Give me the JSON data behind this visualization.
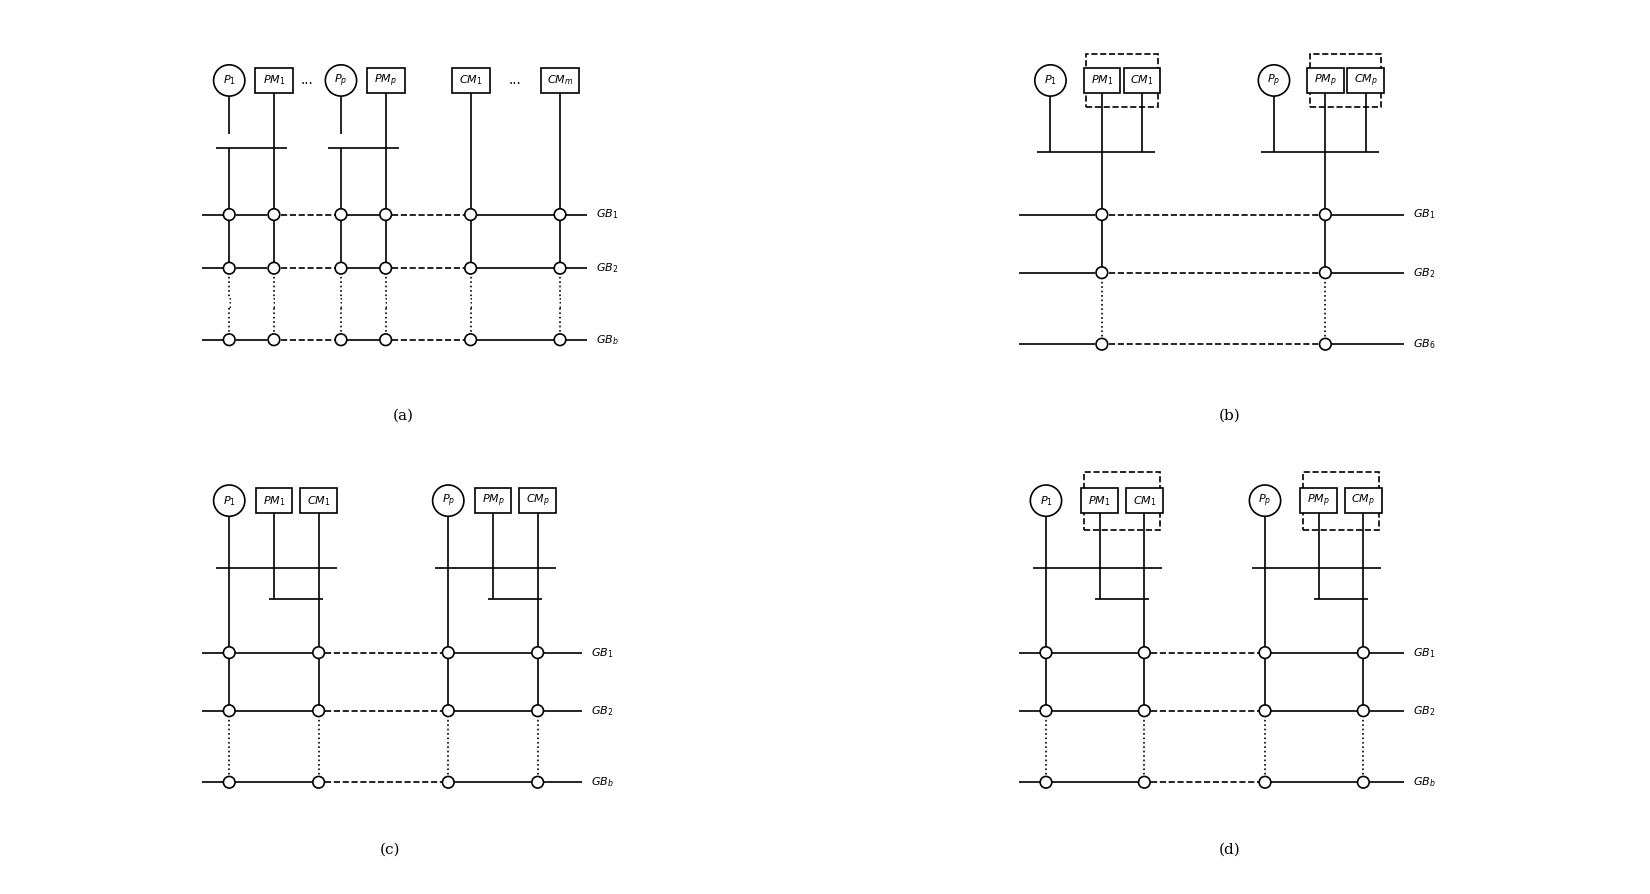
{
  "bg_color": "#ffffff",
  "lc": "#000000",
  "lw": 1.2,
  "panels": [
    "(a)",
    "(b)",
    "(c)",
    "(d)"
  ]
}
